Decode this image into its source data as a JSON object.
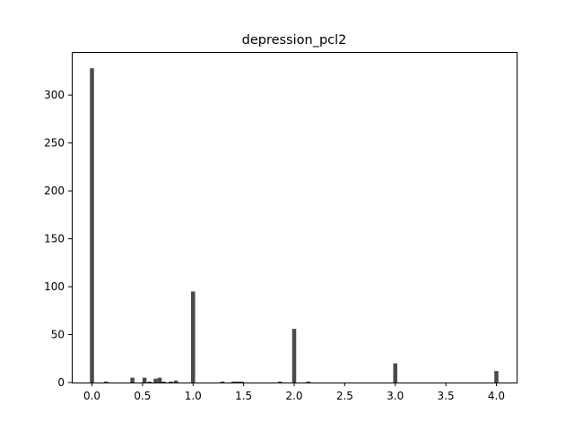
{
  "chart_data": {
    "type": "bar",
    "title": "depression_pcl2",
    "xlabel": "",
    "ylabel": "",
    "xlim": [
      -0.2,
      4.2
    ],
    "ylim": [
      0,
      345
    ],
    "grid": false,
    "color": "#4a4a4a",
    "x_ticks": [
      "0.0",
      "0.5",
      "1.0",
      "1.5",
      "2.0",
      "2.5",
      "3.0",
      "3.5",
      "4.0"
    ],
    "y_ticks": [
      "0",
      "50",
      "100",
      "150",
      "200",
      "250",
      "300"
    ],
    "bin_width": 0.04,
    "bars": [
      {
        "x": 0.0,
        "value": 328
      },
      {
        "x": 0.14,
        "value": 1
      },
      {
        "x": 0.4,
        "value": 5
      },
      {
        "x": 0.52,
        "value": 5
      },
      {
        "x": 0.57,
        "value": 1
      },
      {
        "x": 0.63,
        "value": 4
      },
      {
        "x": 0.67,
        "value": 5
      },
      {
        "x": 0.71,
        "value": 1
      },
      {
        "x": 0.78,
        "value": 1
      },
      {
        "x": 0.83,
        "value": 2
      },
      {
        "x": 1.0,
        "value": 95
      },
      {
        "x": 1.29,
        "value": 1
      },
      {
        "x": 1.4,
        "value": 1
      },
      {
        "x": 1.44,
        "value": 1
      },
      {
        "x": 1.48,
        "value": 1
      },
      {
        "x": 1.86,
        "value": 1
      },
      {
        "x": 2.0,
        "value": 56
      },
      {
        "x": 2.14,
        "value": 1
      },
      {
        "x": 3.0,
        "value": 20
      },
      {
        "x": 4.0,
        "value": 12
      }
    ]
  }
}
